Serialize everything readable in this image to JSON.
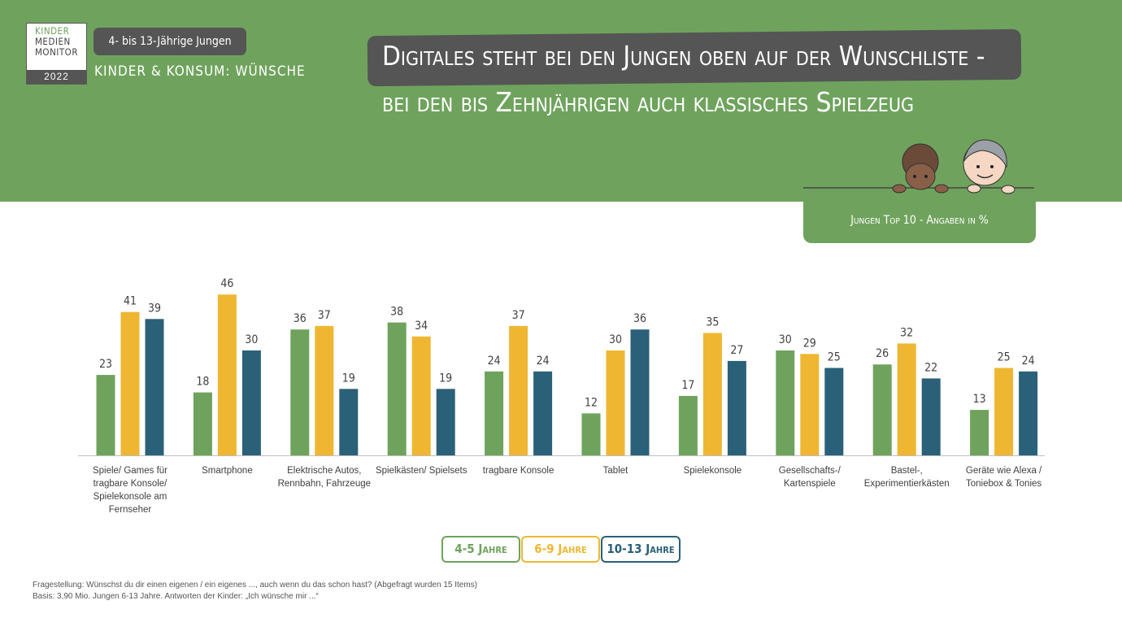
{
  "logo": {
    "line1": "KINDER",
    "line2": "MEDIEN",
    "line3": "MONITOR",
    "year": "2022"
  },
  "header": {
    "tag": "4- bis 13-Jährige Jungen",
    "subtitle": "KINDER & KONSUM: WÜNSCHE",
    "title_line1": "Digitales steht bei den Jungen oben auf der Wunschliste -",
    "title_line2": "bei den bis Zehnjährigen auch klassisches Spielzeug",
    "top_label": "Jungen Top 10 - Angaben in %"
  },
  "colors": {
    "header_green": "#6fa35d",
    "series_green": "#6fa35d",
    "series_yellow": "#efb731",
    "series_blue": "#2b6079",
    "dark_gray": "#555555"
  },
  "chart_data": {
    "type": "bar",
    "categories": [
      "Spiele/ Games für tragbare Konsole/ Spielekonsole am Fernseher",
      "Smartphone",
      "Elektrische Autos, Rennbahn, Fahrzeuge",
      "Spielkästen/ Spielsets",
      "tragbare Konsole",
      "Tablet",
      "Spielekonsole",
      "Gesellschafts-/ Kartenspiele",
      "Bastel-, Experimentierkästen",
      "Geräte wie Alexa / Toniebox & Tonies"
    ],
    "category_lines": [
      [
        "Spiele/ Games für",
        "tragbare Konsole/",
        "Spielekonsole am",
        "Fernseher"
      ],
      [
        "Smartphone"
      ],
      [
        "Elektrische Autos,",
        "Rennbahn, Fahrzeuge"
      ],
      [
        "Spielkästen/ Spielsets"
      ],
      [
        "tragbare Konsole"
      ],
      [
        "Tablet"
      ],
      [
        "Spielekonsole"
      ],
      [
        "Gesellschafts-/",
        "Kartenspiele"
      ],
      [
        "Bastel-,",
        "Experimentierkästen"
      ],
      [
        "Geräte wie Alexa /",
        "Toniebox & Tonies"
      ]
    ],
    "series": [
      {
        "name": "4-5 Jahre",
        "color": "#6fa35d",
        "values": [
          23,
          18,
          36,
          38,
          24,
          12,
          17,
          30,
          26,
          13
        ]
      },
      {
        "name": "6-9 Jahre",
        "color": "#efb731",
        "values": [
          41,
          46,
          37,
          34,
          37,
          30,
          35,
          29,
          32,
          25
        ]
      },
      {
        "name": "10-13 Jahre",
        "color": "#2b6079",
        "values": [
          39,
          30,
          19,
          19,
          24,
          36,
          27,
          25,
          22,
          24
        ]
      }
    ],
    "ylim": [
      0,
      50
    ],
    "grid": false,
    "legend": "bottom-center"
  },
  "footnotes": {
    "line1": "Fragestellung: Wünschst du dir einen eigenen / ein eigenes ..., auch wenn du das schon hast? (Abgefragt wurden 15 Items)",
    "line2": "Basis: 3,90 Mio. Jungen 6-13 Jahre. Antworten der Kinder: „Ich wünsche mir ...“"
  }
}
